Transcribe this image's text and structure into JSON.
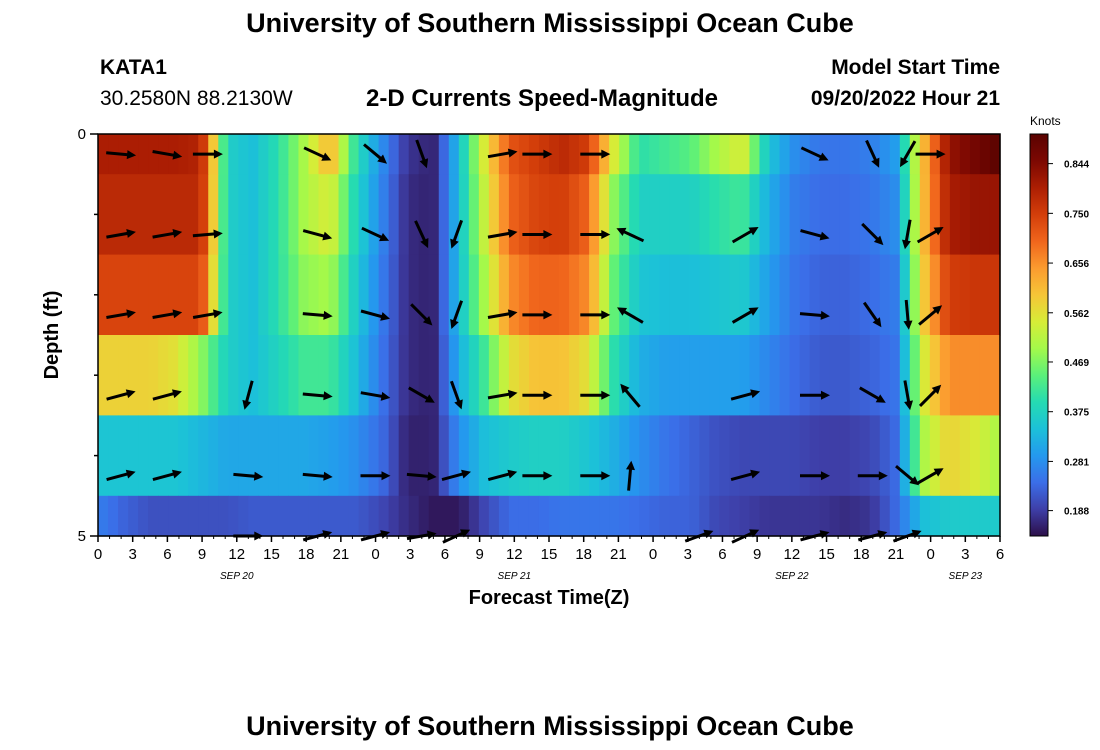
{
  "header": {
    "title": "University of Southern Mississippi Ocean Cube",
    "bottom_title": "University of Southern Mississippi Ocean Cube",
    "station": "KATA1",
    "coords": "30.2580N  88.2130W",
    "plot_title": "2-D Currents Speed-Magnitude",
    "model_start_label": "Model Start Time",
    "model_start_value": "09/20/2022 Hour 21"
  },
  "colors": {
    "ramp": [
      "#2c0f49",
      "#3e3fa8",
      "#3b6ee8",
      "#2499ee",
      "#1cc1d8",
      "#25dbb2",
      "#5bf07a",
      "#a4f94a",
      "#d7ec37",
      "#f6c537",
      "#fb9b2f",
      "#f0651c",
      "#d33e0a",
      "#ac1e03",
      "#7c0802",
      "#5a0301"
    ],
    "arrow": "#000000"
  },
  "chart_data": {
    "type": "heatmap",
    "title": "2-D Currents Speed-Magnitude",
    "xlabel": "Forecast Time(Z)",
    "ylabel": "Depth (ft)",
    "x_hours": [
      0,
      3,
      6,
      9,
      12,
      15,
      18,
      21,
      24,
      27,
      30,
      33,
      36,
      39,
      42,
      45,
      48,
      51,
      54,
      57,
      60,
      63,
      66,
      69,
      72,
      75,
      78
    ],
    "x_tick_labels": [
      "0",
      "3",
      "6",
      "9",
      "12",
      "15",
      "18",
      "21",
      "0",
      "3",
      "6",
      "9",
      "12",
      "15",
      "18",
      "21",
      "0",
      "3",
      "6",
      "9",
      "12",
      "15",
      "18",
      "21",
      "0",
      "3",
      "6"
    ],
    "date_labels": [
      {
        "label": "SEP 20",
        "hour": 12
      },
      {
        "label": "SEP 21",
        "hour": 36
      },
      {
        "label": "SEP 22",
        "hour": 60
      },
      {
        "label": "SEP 23",
        "hour": 75
      }
    ],
    "y_tick_labels": [
      "0",
      "5"
    ],
    "ylim": [
      0,
      5
    ],
    "depth_rows": [
      0.25,
      1.25,
      2.25,
      3.25,
      4.25,
      5.0
    ],
    "colorbar": {
      "unit": "Knots",
      "ticks": [
        0.188,
        0.281,
        0.375,
        0.469,
        0.562,
        0.656,
        0.75,
        0.844
      ],
      "range": [
        0.14,
        0.9
      ]
    },
    "speed_profiles": [
      [
        0.8,
        0.8,
        0.8,
        0.8,
        0.79,
        0.37,
        0.34,
        0.4,
        0.5,
        0.62,
        0.4,
        0.28,
        0.18,
        0.16,
        0.34,
        0.55,
        0.72,
        0.75,
        0.78,
        0.75,
        0.55,
        0.4,
        0.42,
        0.44,
        0.5,
        0.55,
        0.35,
        0.28,
        0.25,
        0.25,
        0.26,
        0.3,
        0.6,
        0.82,
        0.86,
        0.9
      ],
      [
        0.78,
        0.78,
        0.78,
        0.78,
        0.78,
        0.37,
        0.34,
        0.4,
        0.5,
        0.55,
        0.38,
        0.27,
        0.17,
        0.16,
        0.34,
        0.53,
        0.7,
        0.74,
        0.75,
        0.7,
        0.48,
        0.37,
        0.37,
        0.37,
        0.4,
        0.42,
        0.32,
        0.26,
        0.24,
        0.24,
        0.25,
        0.28,
        0.6,
        0.8,
        0.82,
        0.82
      ],
      [
        0.74,
        0.74,
        0.74,
        0.74,
        0.74,
        0.37,
        0.34,
        0.4,
        0.48,
        0.5,
        0.36,
        0.26,
        0.17,
        0.16,
        0.34,
        0.5,
        0.66,
        0.7,
        0.7,
        0.66,
        0.45,
        0.35,
        0.34,
        0.34,
        0.35,
        0.36,
        0.3,
        0.25,
        0.23,
        0.23,
        0.24,
        0.26,
        0.58,
        0.75,
        0.76,
        0.76
      ],
      [
        0.58,
        0.58,
        0.58,
        0.56,
        0.48,
        0.37,
        0.34,
        0.38,
        0.42,
        0.42,
        0.34,
        0.25,
        0.17,
        0.16,
        0.32,
        0.42,
        0.56,
        0.6,
        0.6,
        0.56,
        0.4,
        0.32,
        0.3,
        0.3,
        0.3,
        0.3,
        0.27,
        0.24,
        0.22,
        0.22,
        0.23,
        0.25,
        0.54,
        0.66,
        0.66,
        0.66
      ],
      [
        0.35,
        0.35,
        0.35,
        0.35,
        0.33,
        0.31,
        0.31,
        0.31,
        0.31,
        0.3,
        0.28,
        0.24,
        0.16,
        0.16,
        0.28,
        0.34,
        0.36,
        0.37,
        0.37,
        0.35,
        0.32,
        0.28,
        0.25,
        0.23,
        0.21,
        0.2,
        0.2,
        0.2,
        0.19,
        0.19,
        0.2,
        0.24,
        0.5,
        0.58,
        0.55,
        0.5
      ],
      [
        0.26,
        0.23,
        0.21,
        0.21,
        0.21,
        0.21,
        0.22,
        0.22,
        0.22,
        0.22,
        0.22,
        0.2,
        0.17,
        0.15,
        0.15,
        0.2,
        0.24,
        0.24,
        0.25,
        0.25,
        0.25,
        0.24,
        0.23,
        0.23,
        0.2,
        0.19,
        0.18,
        0.18,
        0.18,
        0.17,
        0.18,
        0.24,
        0.34,
        0.36,
        0.36,
        0.36
      ]
    ],
    "arrow_hours": [
      2,
      6,
      9.5,
      13,
      19,
      24,
      28,
      31,
      35,
      38,
      43,
      46,
      52,
      56,
      62,
      67,
      70,
      72
    ],
    "arrow_directions_deg": [
      [
        95,
        100,
        90,
        null,
        115,
        130,
        160,
        null,
        80,
        90,
        90,
        null,
        null,
        null,
        115,
        155,
        210,
        90
      ],
      [
        80,
        80,
        85,
        null,
        105,
        115,
        155,
        200,
        80,
        90,
        90,
        295,
        null,
        60,
        105,
        135,
        190,
        60
      ],
      [
        80,
        80,
        80,
        null,
        95,
        105,
        135,
        200,
        80,
        90,
        90,
        300,
        null,
        60,
        95,
        145,
        175,
        50
      ],
      [
        75,
        75,
        null,
        195,
        95,
        100,
        120,
        160,
        80,
        90,
        90,
        320,
        null,
        75,
        90,
        120,
        170,
        45
      ],
      [
        75,
        75,
        null,
        95,
        95,
        90,
        95,
        75,
        75,
        90,
        90,
        5,
        null,
        75,
        90,
        90,
        130,
        60
      ],
      [
        null,
        null,
        null,
        90,
        75,
        75,
        80,
        65,
        null,
        null,
        null,
        null,
        70,
        65,
        75,
        75,
        70,
        null
      ]
    ]
  }
}
